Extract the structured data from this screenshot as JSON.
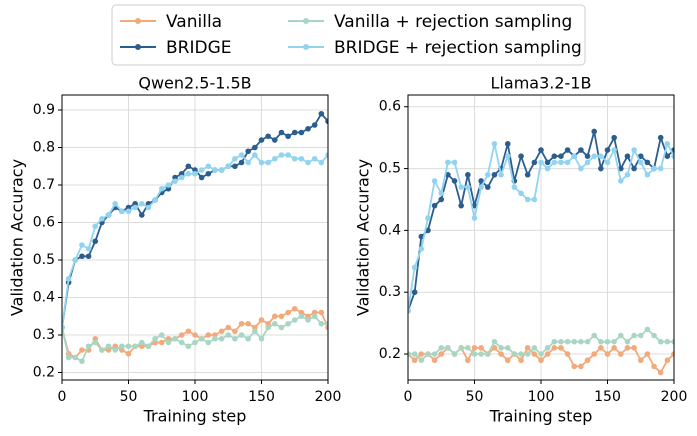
{
  "chart_data": [
    {
      "type": "line",
      "title": "Qwen2.5-1.5B",
      "x_label": "Training step",
      "y_label": "Validation Accuracy",
      "xlim": [
        0,
        200
      ],
      "xticks": [
        0,
        50,
        100,
        150,
        200
      ],
      "ylim": [
        0.18,
        0.94
      ],
      "yticks": [
        0.2,
        0.3,
        0.4,
        0.5,
        0.6,
        0.7,
        0.8,
        0.9
      ],
      "grid": true,
      "x": [
        0,
        5,
        10,
        15,
        20,
        25,
        30,
        35,
        40,
        45,
        50,
        55,
        60,
        65,
        70,
        75,
        80,
        85,
        90,
        95,
        100,
        105,
        110,
        115,
        120,
        125,
        130,
        135,
        140,
        145,
        150,
        155,
        160,
        165,
        170,
        175,
        180,
        185,
        190,
        195,
        200
      ],
      "series": [
        {
          "name": "Vanilla",
          "color": "#f2a97c",
          "values": [
            0.32,
            0.25,
            0.24,
            0.26,
            0.26,
            0.29,
            0.26,
            0.26,
            0.27,
            0.26,
            0.25,
            0.27,
            0.27,
            0.27,
            0.28,
            0.28,
            0.29,
            0.29,
            0.3,
            0.31,
            0.3,
            0.29,
            0.3,
            0.3,
            0.31,
            0.32,
            0.31,
            0.33,
            0.33,
            0.32,
            0.34,
            0.33,
            0.35,
            0.35,
            0.36,
            0.37,
            0.36,
            0.35,
            0.36,
            0.36,
            0.32
          ]
        },
        {
          "name": "BRIDGE",
          "color": "#2b5d8e",
          "values": [
            0.32,
            0.44,
            0.5,
            0.51,
            0.51,
            0.55,
            0.6,
            0.62,
            0.64,
            0.63,
            0.64,
            0.65,
            0.62,
            0.65,
            0.66,
            0.68,
            0.69,
            0.72,
            0.73,
            0.75,
            0.74,
            0.72,
            0.73,
            0.74,
            0.74,
            0.75,
            0.75,
            0.76,
            0.79,
            0.8,
            0.82,
            0.83,
            0.82,
            0.84,
            0.83,
            0.84,
            0.84,
            0.85,
            0.86,
            0.89,
            0.87
          ]
        },
        {
          "name": "Vanilla + rejection sampling",
          "color": "#a9d6c3",
          "values": [
            0.32,
            0.24,
            0.24,
            0.23,
            0.27,
            0.28,
            0.26,
            0.27,
            0.26,
            0.27,
            0.27,
            0.27,
            0.28,
            0.27,
            0.29,
            0.3,
            0.28,
            0.29,
            0.28,
            0.27,
            0.28,
            0.29,
            0.28,
            0.29,
            0.29,
            0.3,
            0.29,
            0.3,
            0.29,
            0.31,
            0.29,
            0.32,
            0.33,
            0.32,
            0.33,
            0.34,
            0.35,
            0.34,
            0.35,
            0.33,
            0.33
          ]
        },
        {
          "name": "BRIDGE + rejection sampling",
          "color": "#92d4f0",
          "values": [
            0.32,
            0.45,
            0.5,
            0.54,
            0.53,
            0.59,
            0.61,
            0.62,
            0.65,
            0.63,
            0.63,
            0.64,
            0.65,
            0.64,
            0.66,
            0.69,
            0.7,
            0.71,
            0.72,
            0.73,
            0.73,
            0.74,
            0.75,
            0.74,
            0.74,
            0.75,
            0.77,
            0.78,
            0.76,
            0.78,
            0.76,
            0.76,
            0.77,
            0.78,
            0.78,
            0.77,
            0.77,
            0.76,
            0.77,
            0.76,
            0.78
          ]
        }
      ]
    },
    {
      "type": "line",
      "title": "Llama3.2-1B",
      "x_label": "Training step",
      "y_label": "Validation Accuracy",
      "xlim": [
        0,
        200
      ],
      "xticks": [
        0,
        50,
        100,
        150,
        200
      ],
      "ylim": [
        0.158,
        0.619
      ],
      "yticks": [
        0.2,
        0.3,
        0.4,
        0.5,
        0.6
      ],
      "grid": true,
      "x": [
        0,
        5,
        10,
        15,
        20,
        25,
        30,
        35,
        40,
        45,
        50,
        55,
        60,
        65,
        70,
        75,
        80,
        85,
        90,
        95,
        100,
        105,
        110,
        115,
        120,
        125,
        130,
        135,
        140,
        145,
        150,
        155,
        160,
        165,
        170,
        175,
        180,
        185,
        190,
        195,
        200
      ],
      "series": [
        {
          "name": "Vanilla",
          "color": "#f2a97c",
          "values": [
            0.2,
            0.19,
            0.2,
            0.2,
            0.19,
            0.2,
            0.21,
            0.2,
            0.21,
            0.19,
            0.21,
            0.21,
            0.2,
            0.21,
            0.2,
            0.19,
            0.2,
            0.19,
            0.21,
            0.2,
            0.19,
            0.2,
            0.21,
            0.21,
            0.2,
            0.18,
            0.18,
            0.19,
            0.2,
            0.21,
            0.2,
            0.21,
            0.2,
            0.21,
            0.21,
            0.19,
            0.2,
            0.18,
            0.17,
            0.19,
            0.2
          ]
        },
        {
          "name": "BRIDGE",
          "color": "#2b5d8e",
          "values": [
            0.27,
            0.3,
            0.39,
            0.4,
            0.44,
            0.45,
            0.49,
            0.48,
            0.44,
            0.49,
            0.44,
            0.48,
            0.47,
            0.49,
            0.5,
            0.54,
            0.48,
            0.52,
            0.49,
            0.51,
            0.53,
            0.51,
            0.52,
            0.52,
            0.53,
            0.52,
            0.53,
            0.52,
            0.56,
            0.5,
            0.53,
            0.55,
            0.5,
            0.52,
            0.5,
            0.52,
            0.51,
            0.5,
            0.55,
            0.52,
            0.53
          ]
        },
        {
          "name": "Vanilla + rejection sampling",
          "color": "#a9d6c3",
          "values": [
            0.2,
            0.2,
            0.19,
            0.2,
            0.2,
            0.21,
            0.21,
            0.2,
            0.21,
            0.21,
            0.2,
            0.2,
            0.2,
            0.22,
            0.21,
            0.21,
            0.2,
            0.2,
            0.2,
            0.21,
            0.2,
            0.21,
            0.22,
            0.22,
            0.22,
            0.22,
            0.22,
            0.22,
            0.23,
            0.22,
            0.22,
            0.22,
            0.23,
            0.22,
            0.23,
            0.23,
            0.24,
            0.23,
            0.22,
            0.22,
            0.22
          ]
        },
        {
          "name": "BRIDGE + rejection sampling",
          "color": "#92d4f0",
          "values": [
            0.27,
            0.34,
            0.37,
            0.42,
            0.48,
            0.46,
            0.51,
            0.51,
            0.47,
            0.47,
            0.42,
            0.47,
            0.49,
            0.54,
            0.49,
            0.52,
            0.47,
            0.46,
            0.45,
            0.45,
            0.51,
            0.5,
            0.51,
            0.51,
            0.51,
            0.52,
            0.5,
            0.51,
            0.52,
            0.52,
            0.51,
            0.53,
            0.48,
            0.49,
            0.53,
            0.51,
            0.49,
            0.5,
            0.5,
            0.54,
            0.52
          ]
        }
      ]
    }
  ]
}
